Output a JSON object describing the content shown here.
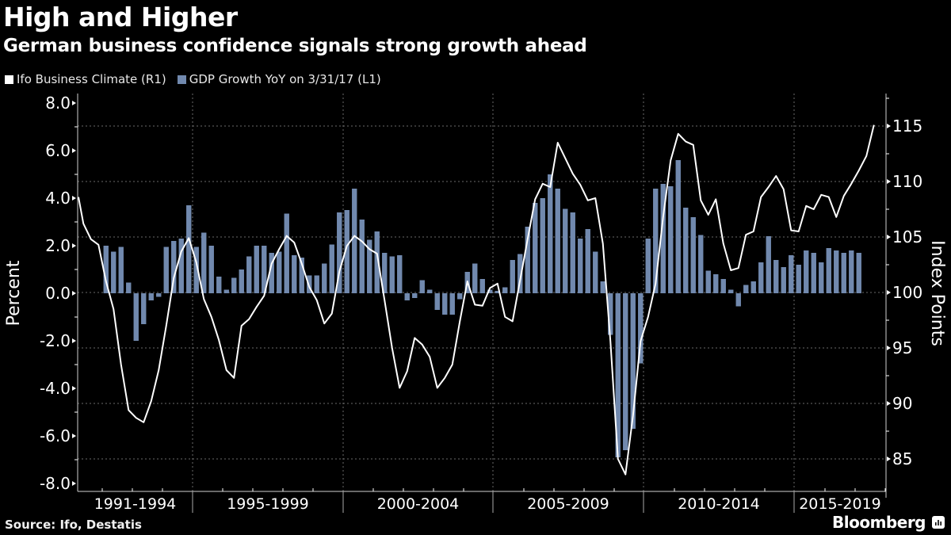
{
  "header": {
    "title": "High and Higher",
    "subtitle": "German business confidence signals strong growth ahead"
  },
  "legend": [
    {
      "label": "Ifo Business Climate (R1)",
      "color": "#ffffff"
    },
    {
      "label": "GDP Growth YoY on 3/31/17 (L1)",
      "color": "#7189ae"
    }
  ],
  "footer": {
    "source": "Source: Ifo, Destatis",
    "brand": "Bloomberg",
    "brand_icon": "bloomberg-chart-icon"
  },
  "chart_data": {
    "type": "bar+line",
    "title": "High and Higher",
    "subtitle": "German business confidence signals strong growth ahead",
    "xlabel": "",
    "ylabel_left": "Percent",
    "ylabel_right": "Index Points",
    "grid": true,
    "legend_position": "top-left",
    "x_ticks": [
      "1991-1994",
      "1995-1999",
      "2000-2004",
      "2005-2009",
      "2010-2014",
      "2015-2019"
    ],
    "y_left": {
      "ticks": [
        "8.0",
        "6.0",
        "4.0",
        "2.0",
        "0.0",
        "-2.0",
        "-4.0",
        "-6.0",
        "-8.0"
      ],
      "range": [
        -8.4,
        8.4
      ]
    },
    "y_right": {
      "ticks": [
        "115",
        "110",
        "105",
        "100",
        "95",
        "90",
        "85"
      ],
      "range": [
        83,
        118
      ]
    },
    "x_range": [
      "1991Q1",
      "2019Q4"
    ],
    "series": [
      {
        "name": "GDP Growth YoY on 3/31/17 (L1)",
        "type": "bar",
        "axis": "left",
        "color": "#7189ae",
        "start": "1992Q1",
        "frequency": "quarterly",
        "values": [
          2.0,
          1.75,
          1.95,
          0.45,
          -2.0,
          -1.3,
          -0.3,
          -0.15,
          1.95,
          2.2,
          2.3,
          3.7,
          1.95,
          2.55,
          2.0,
          0.7,
          0.15,
          0.65,
          1.0,
          1.55,
          2.0,
          2.0,
          1.7,
          1.75,
          3.35,
          1.6,
          1.5,
          0.75,
          0.75,
          1.25,
          2.05,
          3.4,
          3.5,
          4.4,
          3.1,
          2.25,
          2.6,
          1.7,
          1.55,
          1.6,
          -0.3,
          -0.2,
          0.55,
          0.15,
          -0.7,
          -0.9,
          -0.9,
          -0.25,
          0.9,
          1.25,
          0.6,
          0.15,
          0.1,
          0.25,
          1.4,
          1.65,
          2.8,
          3.8,
          4.0,
          5.0,
          4.4,
          3.55,
          3.4,
          2.3,
          2.7,
          1.75,
          0.5,
          -1.75,
          -6.9,
          -6.6,
          -5.7,
          -2.95,
          2.3,
          4.4,
          4.6,
          4.5,
          5.6,
          3.6,
          3.2,
          2.45,
          0.95,
          0.8,
          0.6,
          0.15,
          -0.55,
          0.35,
          0.5,
          1.3,
          2.4,
          1.4,
          1.1,
          1.6,
          1.2,
          1.8,
          1.7,
          1.3,
          1.9,
          1.8,
          1.7,
          1.8,
          1.7
        ]
      },
      {
        "name": "Ifo Business Climate (R1)",
        "type": "line",
        "axis": "right",
        "color": "#ffffff",
        "start": "1991Q1",
        "frequency": "quarterly",
        "values": [
          108.6,
          106.2,
          104.8,
          104.3,
          101.0,
          98.5,
          93.5,
          89.4,
          88.7,
          88.3,
          90.2,
          93.0,
          97.0,
          101.3,
          103.7,
          104.9,
          102.7,
          99.4,
          97.8,
          95.7,
          93.0,
          92.3,
          97.0,
          97.6,
          98.7,
          99.7,
          102.6,
          103.9,
          105.1,
          104.5,
          102.6,
          100.5,
          99.3,
          97.2,
          98.1,
          101.9,
          104.2,
          105.1,
          104.6,
          103.9,
          103.5,
          99.3,
          95.0,
          91.4,
          92.9,
          95.9,
          95.3,
          94.2,
          91.4,
          92.3,
          93.5,
          97.4,
          101.0,
          98.9,
          98.8,
          100.4,
          100.8,
          97.8,
          97.4,
          101.1,
          104.8,
          108.4,
          109.8,
          109.5,
          113.5,
          112.1,
          110.7,
          109.7,
          108.3,
          108.5,
          104.4,
          95.6,
          85.0,
          83.6,
          88.9,
          95.6,
          97.8,
          100.8,
          106.8,
          111.9,
          114.3,
          113.6,
          113.3,
          108.3,
          107.0,
          108.4,
          104.4,
          102.0,
          102.2,
          105.2,
          105.5,
          108.6,
          109.5,
          110.5,
          109.3,
          105.6,
          105.5,
          107.8,
          107.5,
          108.8,
          108.6,
          106.8,
          108.7,
          109.8,
          111.0,
          112.3,
          115.1
        ]
      }
    ]
  }
}
